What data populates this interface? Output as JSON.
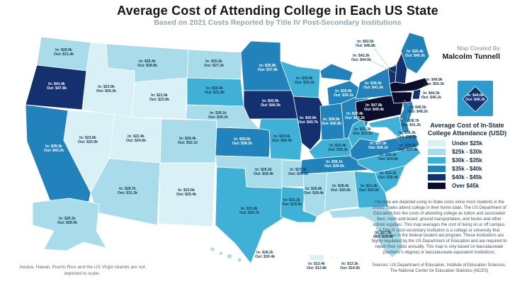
{
  "title": "Average Cost of Attending College in Each US State",
  "subtitle": "Based on 2021 Costs Reported by Title IV Post-Secondary Institutions",
  "credit": {
    "line1": "Map Created By",
    "line2": "Malcolm Tunnell"
  },
  "legend": {
    "title_line1": "Average Cost of In-State",
    "title_line2": "College Attendance (USD)",
    "categories": [
      {
        "label": "Under $25k",
        "color": "#d9f0f6"
      },
      {
        "label": "$25k - $30k",
        "color": "#a9dcea"
      },
      {
        "label": "$30k - $35k",
        "color": "#3fb0d6"
      },
      {
        "label": "$35k - $40k",
        "color": "#2282bb"
      },
      {
        "label": "$40k - $45k",
        "color": "#15306e"
      },
      {
        "label": "Over $45k",
        "color": "#0b0e2b"
      }
    ]
  },
  "colors": {
    "label_dark": "#16384f",
    "label_light": "#ffffff",
    "inset_bg": "#2e9bcd"
  },
  "states": [
    {
      "id": "WA",
      "name": "Washington",
      "in_cost": "$28.9k",
      "out_cost": "$31.4k",
      "category": 1
    },
    {
      "id": "OR",
      "name": "Oregon",
      "in_cost": "$41.4k",
      "out_cost": "$47.8k",
      "category": 4
    },
    {
      "id": "CA",
      "name": "California",
      "in_cost": "$39.3k",
      "out_cost": "$43.2k",
      "category": 3
    },
    {
      "id": "ID",
      "name": "Idaho",
      "in_cost": "$23.9k",
      "out_cost": "$26.2k",
      "category": 0
    },
    {
      "id": "NV",
      "name": "Nevada",
      "in_cost": "$23.8k",
      "out_cost": "$25.9k",
      "category": 0
    },
    {
      "id": "UT",
      "name": "Utah",
      "in_cost": "$22.4k",
      "out_cost": "$24.6k",
      "category": 0
    },
    {
      "id": "AZ",
      "name": "Arizona",
      "in_cost": "$28.7k",
      "out_cost": "$31.3k",
      "category": 1
    },
    {
      "id": "MT",
      "name": "Montana",
      "in_cost": "$26.4k",
      "out_cost": "$28.8k",
      "category": 1
    },
    {
      "id": "WY",
      "name": "Wyoming",
      "in_cost": "$21.9k",
      "out_cost": "$23.8k",
      "category": 0
    },
    {
      "id": "CO",
      "name": "Colorado",
      "in_cost": "$29.4k",
      "out_cost": "$32.1k",
      "category": 1
    },
    {
      "id": "NM",
      "name": "New Mexico",
      "in_cost": "$23.6k",
      "out_cost": "$25.4k",
      "category": 0
    },
    {
      "id": "ND",
      "name": "North Dakota",
      "in_cost": "$25.6k",
      "out_cost": "$27.2k",
      "category": 1
    },
    {
      "id": "SD",
      "name": "South Dakota",
      "in_cost": "$30.4k",
      "out_cost": "$31.9k",
      "category": 2
    },
    {
      "id": "NE",
      "name": "Nebraska",
      "in_cost": "$28.1k",
      "out_cost": "$30.3k",
      "category": 1
    },
    {
      "id": "KS",
      "name": "Kansas",
      "in_cost": "$35.5k",
      "out_cost": "$38.2k",
      "category": 3
    },
    {
      "id": "OK",
      "name": "Oklahoma",
      "in_cost": "$26.2k",
      "out_cost": "$28.4k",
      "category": 1
    },
    {
      "id": "TX",
      "name": "Texas",
      "in_cost": "$31.8k",
      "out_cost": "$34.7k",
      "category": 2
    },
    {
      "id": "MN",
      "name": "Minnesota",
      "in_cost": "$35.8k",
      "out_cost": "$37.9k",
      "category": 3
    },
    {
      "id": "IA",
      "name": "Iowa",
      "in_cost": "$42.9k",
      "out_cost": "$44.3k",
      "category": 4
    },
    {
      "id": "MO",
      "name": "Missouri",
      "in_cost": "$33.6k",
      "out_cost": "$36.4k",
      "category": 2
    },
    {
      "id": "AR",
      "name": "Arkansas",
      "in_cost": "$27.3k",
      "out_cost": "$29.8k",
      "category": 1
    },
    {
      "id": "LA",
      "name": "Louisiana",
      "in_cost": "$31.2k",
      "out_cost": "$33.5k",
      "category": 2
    },
    {
      "id": "WI",
      "name": "Wisconsin",
      "in_cost": "$30.9k",
      "out_cost": "$33.2k",
      "category": 2
    },
    {
      "id": "IL",
      "name": "Illinois",
      "in_cost": "$42.6k",
      "out_cost": "$43.7k",
      "category": 4
    },
    {
      "id": "MI",
      "name": "Michigan",
      "in_cost": "$35.9k",
      "out_cost": "$39.1k",
      "category": 3
    },
    {
      "id": "IN",
      "name": "Indiana",
      "in_cost": "$36.9k",
      "out_cost": "$40.8k",
      "category": 3
    },
    {
      "id": "OH",
      "name": "Ohio",
      "in_cost": "$37.4k",
      "out_cost": "$40.2k",
      "category": 3
    },
    {
      "id": "KY",
      "name": "Kentucky",
      "in_cost": "$33.4k",
      "out_cost": "$35.3k",
      "category": 2
    },
    {
      "id": "TN",
      "name": "Tennessee",
      "in_cost": "$36.1k",
      "out_cost": "$39.6k",
      "category": 3
    },
    {
      "id": "MS",
      "name": "Mississippi",
      "in_cost": "$26.8k",
      "out_cost": "$28.4k",
      "category": 1
    },
    {
      "id": "AL",
      "name": "Alabama",
      "in_cost": "$28.4k",
      "out_cost": "$30.6k",
      "category": 1
    },
    {
      "id": "GA",
      "name": "Georgia",
      "in_cost": "$31.4k",
      "out_cost": "$34.2k",
      "category": 2
    },
    {
      "id": "FL",
      "name": "Florida",
      "in_cost": "$27.9k",
      "out_cost": "$29.9k",
      "category": 1
    },
    {
      "id": "SC",
      "name": "South Carolina",
      "in_cost": "$33.2k",
      "out_cost": "$36.4k",
      "category": 2
    },
    {
      "id": "NC",
      "name": "North Carolina",
      "in_cost": "$32.1k",
      "out_cost": "$34.8k",
      "category": 2
    },
    {
      "id": "VA",
      "name": "Virginia",
      "in_cost": "$37.3k",
      "out_cost": "$40.1k",
      "category": 3
    },
    {
      "id": "WV",
      "name": "West Virginia",
      "in_cost": "$31.3k",
      "out_cost": "$33.6k",
      "category": 2
    },
    {
      "id": "PA",
      "name": "Pennsylvania",
      "in_cost": "$47.8k",
      "out_cost": "$49.4k",
      "category": 5
    },
    {
      "id": "NY",
      "name": "New York",
      "in_cost": "$39.3k",
      "out_cost": "$41.3k",
      "category": 3
    },
    {
      "id": "VT",
      "name": "Vermont",
      "in_cost": "$43.5k",
      "out_cost": "$46.8k",
      "category": 4
    },
    {
      "id": "NH",
      "name": "New Hampshire",
      "in_cost": "$42.3k",
      "out_cost": "$44.6k",
      "category": 4
    },
    {
      "id": "ME",
      "name": "Maine",
      "in_cost": "$35.4k",
      "out_cost": "$40.3k",
      "category": 3
    },
    {
      "id": "MA",
      "name": "Massachusetts",
      "in_cost": "$49.9k",
      "out_cost": "$50.3k",
      "category": 5
    },
    {
      "id": "RI",
      "name": "Rhode Island",
      "in_cost": "$44.3k",
      "out_cost": "$46.1k",
      "category": 4
    },
    {
      "id": "CT",
      "name": "Connecticut",
      "in_cost": "$46.5k",
      "out_cost": "$48.2k",
      "category": 5
    },
    {
      "id": "NJ",
      "name": "New Jersey",
      "in_cost": "$38.7k",
      "out_cost": "$41.2k",
      "category": 3
    },
    {
      "id": "DE",
      "name": "Delaware",
      "in_cost": "$36.3k",
      "out_cost": "$38.9k",
      "category": 3
    },
    {
      "id": "MD",
      "name": "Maryland",
      "in_cost": "$34.6k",
      "out_cost": "$37.9k",
      "category": 2
    },
    {
      "id": "DC",
      "name": "Washington DC",
      "in_cost": "$44.6k",
      "out_cost": "$46.2k",
      "category": 4
    },
    {
      "id": "AK",
      "name": "Alaska",
      "in_cost": "$26.1k",
      "out_cost": "$28.9k",
      "category": 1
    },
    {
      "id": "HI",
      "name": "Hawaii",
      "in_cost": "$28.2k",
      "out_cost": "$30.4k",
      "category": 1
    },
    {
      "id": "PR",
      "name": "Puerto Rico",
      "in_cost": "$12.4k",
      "out_cost": "$13.8k",
      "category": 0
    },
    {
      "id": "VI",
      "name": "US Virgin Islands",
      "in_cost": "$13.1k",
      "out_cost": "$14.5k",
      "category": 0
    }
  ],
  "description": "The data are depicted using In-State costs since most students in the United States attend college in their home state. The US Department of Education lists the costs of attending college as tuition and associated fees, room and board, ground transportation, and books and other school supplies. This map averages the cost of living on or off campus. A Title IV post-secondary institution is a college or university that participates in the federal student aid program. These institutions are highly regulated by the US Department of Education and are required to report their costs annually. This map is only based on baccalaureate (bachelor's degree) or baccalaureate-equivalent institutions.",
  "sources": "Sources: US Department of Education,  Institute of Education Sciences, The National Center for Education Statistics (NCES)",
  "scale_note": "Alaska, Hawaii, Puerto Rico and the US Virgin Islands are not depicted to scale."
}
